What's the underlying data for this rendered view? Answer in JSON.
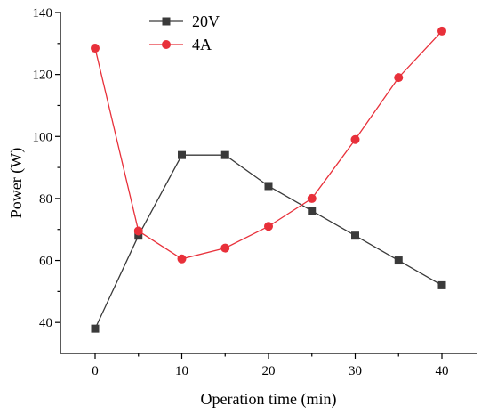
{
  "chart_data": {
    "type": "line",
    "xlabel": "Operation time (min)",
    "ylabel": "Power (W)",
    "xlim": [
      -4,
      44
    ],
    "ylim": [
      30,
      140
    ],
    "xticks": [
      0,
      10,
      20,
      30,
      40
    ],
    "yticks": [
      40,
      60,
      80,
      100,
      120,
      140
    ],
    "x": [
      0,
      5,
      10,
      15,
      20,
      25,
      30,
      35,
      40
    ],
    "legend_position": "top-left",
    "grid": false,
    "series": [
      {
        "name": "20V",
        "color": "#3a3a3a",
        "marker": "square",
        "values": [
          38,
          68,
          94,
          94,
          84,
          76,
          68,
          60,
          52
        ]
      },
      {
        "name": "4A",
        "color": "#e8303a",
        "marker": "circle",
        "values": [
          128.5,
          69.5,
          60.5,
          64,
          71,
          80,
          99,
          119,
          134
        ]
      }
    ]
  }
}
